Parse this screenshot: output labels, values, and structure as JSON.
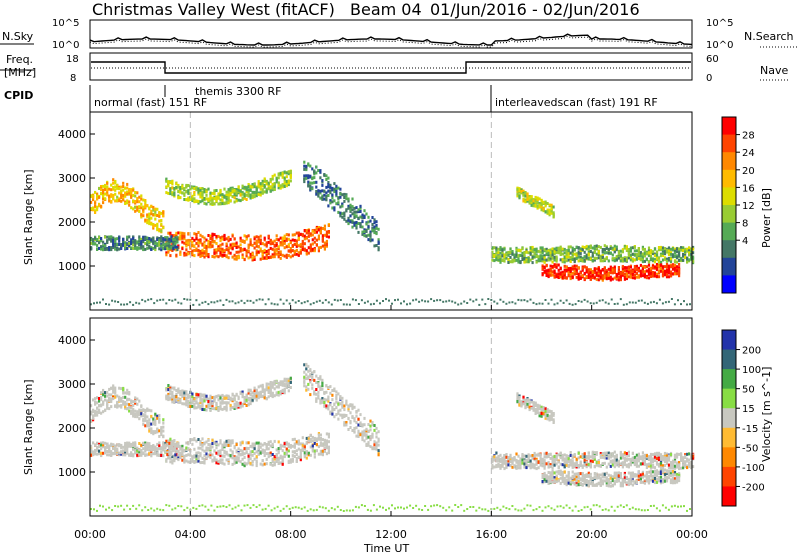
{
  "header": {
    "title": "Christmas Valley West (fitACF)",
    "beam": "Beam 04",
    "date_range": "01/Jun/2016 - 02/Jun/2016"
  },
  "noise_panel": {
    "left_label": "N.Sky",
    "right_label": "N.Search",
    "tick_top": "10^5",
    "tick_bottom": "10^0"
  },
  "freq_panel": {
    "left_label_1": "Freq.",
    "left_label_2": "[MHz]",
    "left_ticks": [
      "18",
      "8"
    ],
    "right_label": "Nave",
    "right_ticks": [
      "60",
      "0"
    ]
  },
  "cpid": {
    "label": "CPID",
    "segments": [
      {
        "text": "normal (fast) 151 RF",
        "start": "00:00"
      },
      {
        "text": "themis 3300 RF",
        "start": "03:00"
      },
      {
        "text": "interleavedscan (fast) 191 RF",
        "start": "16:00"
      }
    ]
  },
  "chart_data": [
    {
      "type": "heatmap",
      "panel": "power",
      "ylabel": "Slant Range [km]",
      "yticks": [
        "1000",
        "2000",
        "3000",
        "4000"
      ],
      "ylim": [
        0,
        4500
      ],
      "xticks": [
        "00:00",
        "04:00",
        "08:00",
        "12:00",
        "16:00",
        "20:00",
        "00:00"
      ],
      "colorbar": {
        "label": "Power [dB]",
        "ticks": [
          "28",
          "24",
          "20",
          "16",
          "12",
          "8",
          "4"
        ],
        "colors": [
          "#ff0000",
          "#ff4400",
          "#ff8800",
          "#ffbb00",
          "#dddd00",
          "#99cc33",
          "#55aa55",
          "#447766",
          "#224499",
          "#0000ff"
        ]
      }
    },
    {
      "type": "heatmap",
      "panel": "velocity",
      "ylabel": "Slant Range [km]",
      "yticks": [
        "1000",
        "2000",
        "3000",
        "4000"
      ],
      "ylim": [
        0,
        4500
      ],
      "xticks": [
        "00:00",
        "04:00",
        "08:00",
        "12:00",
        "16:00",
        "20:00",
        "00:00"
      ],
      "xlabel": "Time UT",
      "colorbar": {
        "label": "Velocity [m s^-1]",
        "ticks": [
          "200",
          "100",
          "50",
          "15",
          "-15",
          "-50",
          "-100",
          "-200"
        ],
        "colors": [
          "#2233aa",
          "#336677",
          "#44aa44",
          "#88dd44",
          "#c8c8c0",
          "#ffbb33",
          "#ff8800",
          "#ff4400",
          "#ff0000"
        ]
      }
    }
  ]
}
